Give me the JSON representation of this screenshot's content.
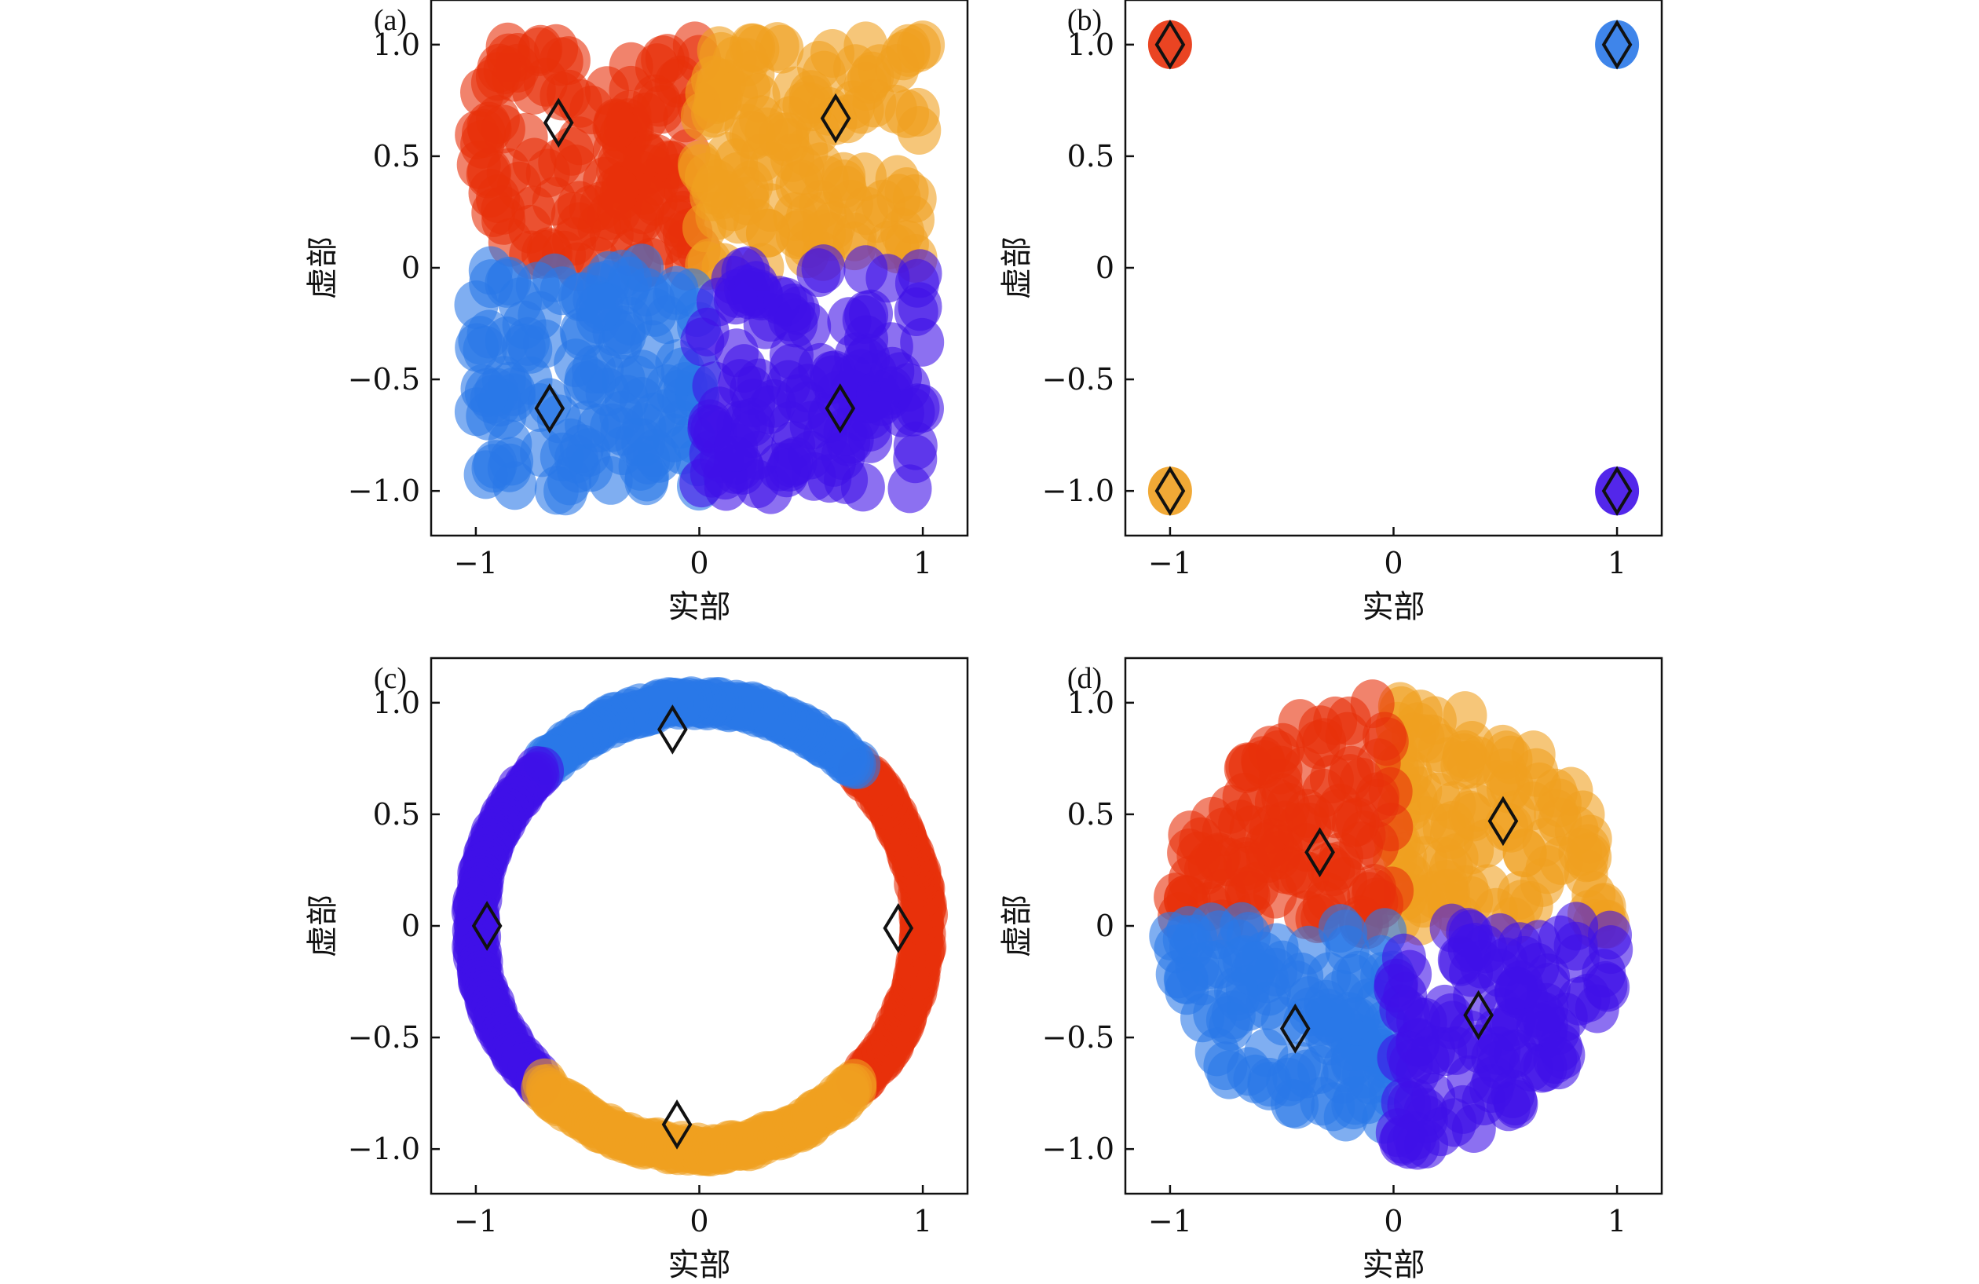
{
  "figure": {
    "colors": {
      "red": "#e8300a",
      "orange": "#f0a020",
      "blue": "#2a78e8",
      "purple": "#4010e8",
      "frame": "#111111",
      "marker": "#111111"
    }
  },
  "chart_data": [
    {
      "panel": "(a)",
      "type": "scatter",
      "xlabel": "实部",
      "ylabel": "虚部",
      "xlim": [
        -1.2,
        1.2
      ],
      "ylim": [
        -1.2,
        1.2
      ],
      "xticks": [
        -1,
        0,
        1
      ],
      "xtick_labels": [
        "−1",
        "0",
        "1"
      ],
      "yticks": [
        1.0,
        0.5,
        0,
        -0.5,
        -1.0
      ],
      "ytick_labels": [
        "1.0",
        "0.5",
        "0",
        "−0.5",
        "−1.0"
      ],
      "point_opacity": 0.6,
      "series": [
        {
          "color": "red",
          "distribution": "uniform square",
          "region": {
            "x": [
              -1.0,
              0.0
            ],
            "y": [
              0.0,
              1.0
            ]
          },
          "n_points": 130
        },
        {
          "color": "orange",
          "distribution": "uniform square",
          "region": {
            "x": [
              0.0,
              1.0
            ],
            "y": [
              0.0,
              1.0
            ]
          },
          "n_points": 130
        },
        {
          "color": "blue",
          "distribution": "uniform square",
          "region": {
            "x": [
              -1.0,
              0.0
            ],
            "y": [
              -1.0,
              0.0
            ]
          },
          "n_points": 130
        },
        {
          "color": "purple",
          "distribution": "uniform square",
          "region": {
            "x": [
              0.0,
              1.0
            ],
            "y": [
              -1.0,
              0.0
            ]
          },
          "n_points": 130
        }
      ],
      "centroids": [
        {
          "x": -0.63,
          "y": 0.65
        },
        {
          "x": 0.61,
          "y": 0.67
        },
        {
          "x": -0.67,
          "y": -0.63
        },
        {
          "x": 0.63,
          "y": -0.63
        }
      ]
    },
    {
      "panel": "(b)",
      "type": "scatter",
      "xlabel": "实部",
      "ylabel": "虚部",
      "xlim": [
        -1.2,
        1.2
      ],
      "ylim": [
        -1.2,
        1.2
      ],
      "xticks": [
        -1,
        0,
        1
      ],
      "xtick_labels": [
        "−1",
        "0",
        "1"
      ],
      "yticks": [
        1.0,
        0.5,
        0,
        -0.5,
        -1.0
      ],
      "ytick_labels": [
        "1.0",
        "0.5",
        "0",
        "−0.5",
        "−1.0"
      ],
      "point_opacity": 0.9,
      "series": [
        {
          "color": "red",
          "distribution": "points",
          "points": [
            [
              -1,
              1
            ]
          ]
        },
        {
          "color": "blue",
          "distribution": "points",
          "points": [
            [
              1,
              1
            ]
          ]
        },
        {
          "color": "orange",
          "distribution": "points",
          "points": [
            [
              -1,
              -1
            ]
          ]
        },
        {
          "color": "purple",
          "distribution": "points",
          "points": [
            [
              1,
              -1
            ]
          ]
        }
      ],
      "centroids": [
        {
          "x": -1,
          "y": 1
        },
        {
          "x": 1,
          "y": 1
        },
        {
          "x": -1,
          "y": -1
        },
        {
          "x": 1,
          "y": -1
        }
      ]
    },
    {
      "panel": "(c)",
      "type": "scatter",
      "xlabel": "实部",
      "ylabel": "虚部",
      "xlim": [
        -1.2,
        1.2
      ],
      "ylim": [
        -1.2,
        1.2
      ],
      "xticks": [
        -1,
        0,
        1
      ],
      "xtick_labels": [
        "−1",
        "0",
        "1"
      ],
      "yticks": [
        1.0,
        0.5,
        0,
        -0.5,
        -1.0
      ],
      "ytick_labels": [
        "1.0",
        "0.5",
        "0",
        "−0.5",
        "−1.0"
      ],
      "point_opacity": 0.6,
      "series": [
        {
          "color": "red",
          "distribution": "ring",
          "radius": 1.0,
          "angle_deg": [
            -45,
            45
          ],
          "n_points": 110
        },
        {
          "color": "blue",
          "distribution": "ring",
          "radius": 1.0,
          "angle_deg": [
            45,
            135
          ],
          "n_points": 110
        },
        {
          "color": "purple",
          "distribution": "ring",
          "radius": 1.0,
          "angle_deg": [
            135,
            225
          ],
          "n_points": 110
        },
        {
          "color": "orange",
          "distribution": "ring",
          "radius": 1.0,
          "angle_deg": [
            225,
            315
          ],
          "n_points": 110
        }
      ],
      "centroids": [
        {
          "x": 0.89,
          "y": -0.01
        },
        {
          "x": -0.12,
          "y": 0.88
        },
        {
          "x": -0.95,
          "y": 0.0
        },
        {
          "x": -0.1,
          "y": -0.89
        }
      ]
    },
    {
      "panel": "(d)",
      "type": "scatter",
      "xlabel": "实部",
      "ylabel": "虚部",
      "xlim": [
        -1.2,
        1.2
      ],
      "ylim": [
        -1.2,
        1.2
      ],
      "xticks": [
        -1,
        0,
        1
      ],
      "xtick_labels": [
        "−1",
        "0",
        "1"
      ],
      "yticks": [
        1.0,
        0.5,
        0,
        -0.5,
        -1.0
      ],
      "ytick_labels": [
        "1.0",
        "0.5",
        "0",
        "−0.5",
        "−1.0"
      ],
      "point_opacity": 0.6,
      "series": [
        {
          "color": "orange",
          "distribution": "disk",
          "radius": 1.0,
          "angle_deg": [
            0,
            90
          ],
          "n_points": 110
        },
        {
          "color": "red",
          "distribution": "disk",
          "radius": 1.0,
          "angle_deg": [
            90,
            180
          ],
          "n_points": 110
        },
        {
          "color": "blue",
          "distribution": "disk",
          "radius": 1.0,
          "angle_deg": [
            180,
            270
          ],
          "n_points": 110
        },
        {
          "color": "purple",
          "distribution": "disk",
          "radius": 1.0,
          "angle_deg": [
            270,
            360
          ],
          "n_points": 110
        }
      ],
      "centroids": [
        {
          "x": 0.49,
          "y": 0.47
        },
        {
          "x": -0.33,
          "y": 0.33
        },
        {
          "x": -0.44,
          "y": -0.46
        },
        {
          "x": 0.38,
          "y": -0.4
        }
      ]
    }
  ]
}
